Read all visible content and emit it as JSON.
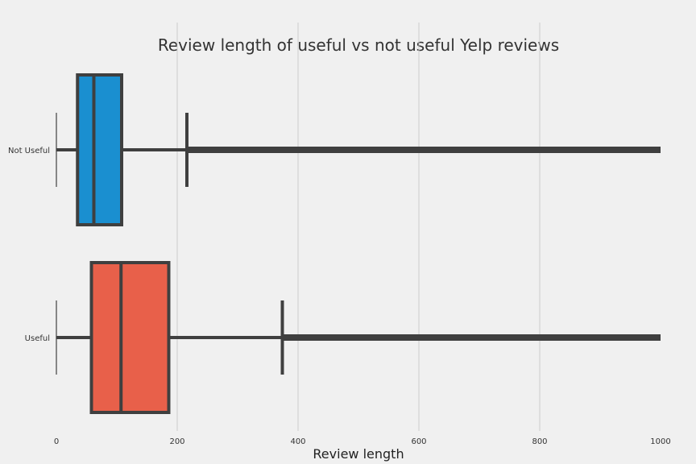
{
  "chart_data": {
    "type": "box",
    "orientation": "horizontal",
    "title": "Review length of useful vs not useful Yelp reviews",
    "xlabel": "Review length",
    "ylabel": "",
    "xlim": [
      0,
      1000
    ],
    "xticks": [
      0,
      200,
      400,
      600,
      800,
      1000
    ],
    "categories": [
      "Not Useful",
      "Useful"
    ],
    "grid": {
      "x": true,
      "y": false
    },
    "series": [
      {
        "category": "Not Useful",
        "color": "#1a8fd0",
        "whisker_low": 0,
        "q1": 35,
        "median": 62,
        "q3": 108,
        "whisker_high": 216,
        "outliers_from": 216,
        "outliers_to": 1000
      },
      {
        "category": "Useful",
        "color": "#e8604a",
        "whisker_low": 0,
        "q1": 58,
        "median": 107,
        "q3": 186,
        "whisker_high": 374,
        "outliers_from": 374,
        "outliers_to": 1000
      }
    ]
  }
}
